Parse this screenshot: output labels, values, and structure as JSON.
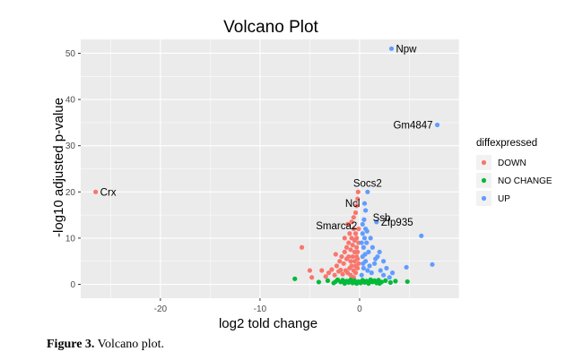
{
  "caption": {
    "label": "Figure 3.",
    "text": " Volcano plot."
  },
  "chart_data": {
    "type": "scatter",
    "title": "Volcano Plot",
    "xlabel": "log2 told change",
    "ylabel": "-log10 adjusted p-value",
    "xlim": [
      -28,
      10
    ],
    "ylim": [
      -3,
      53
    ],
    "x_ticks": [
      -20,
      -10,
      0
    ],
    "y_ticks": [
      0,
      10,
      20,
      30,
      40,
      50
    ],
    "grid": true,
    "legend": {
      "title": "diffexpressed",
      "placement": "right"
    },
    "series": [
      {
        "name": "DOWN",
        "color": "#F8766D",
        "points": [
          [
            -26.5,
            20
          ],
          [
            -5.8,
            8
          ],
          [
            -5,
            3
          ],
          [
            -4.8,
            1.5
          ],
          [
            -3.8,
            3
          ],
          [
            -3.4,
            1.7
          ],
          [
            -3.1,
            2.5
          ],
          [
            -2.8,
            3.2
          ],
          [
            -2.5,
            2
          ],
          [
            -2.3,
            4
          ],
          [
            -2.1,
            2.8
          ],
          [
            -2,
            5
          ],
          [
            -1.9,
            3.1
          ],
          [
            -1.8,
            6
          ],
          [
            -1.7,
            2.2
          ],
          [
            -1.6,
            4.5
          ],
          [
            -1.5,
            7
          ],
          [
            -1.4,
            3
          ],
          [
            -1.3,
            5.5
          ],
          [
            -1.3,
            8
          ],
          [
            -1.2,
            2.5
          ],
          [
            -1.1,
            6
          ],
          [
            -1.1,
            9
          ],
          [
            -1,
            3.5
          ],
          [
            -1,
            11
          ],
          [
            -0.9,
            5
          ],
          [
            -0.9,
            7.5
          ],
          [
            -0.8,
            4
          ],
          [
            -0.8,
            10
          ],
          [
            -0.7,
            6
          ],
          [
            -0.7,
            8.5
          ],
          [
            -0.6,
            3
          ],
          [
            -0.6,
            12
          ],
          [
            -0.5,
            5
          ],
          [
            -0.5,
            7
          ],
          [
            -0.5,
            9.5
          ],
          [
            -0.4,
            4
          ],
          [
            -0.4,
            11
          ],
          [
            -0.3,
            6
          ],
          [
            -0.3,
            8
          ],
          [
            -0.3,
            10
          ],
          [
            -0.2,
            3.5
          ],
          [
            -0.2,
            5.5
          ],
          [
            -0.2,
            7
          ],
          [
            -0.1,
            4.5
          ],
          [
            -0.1,
            9
          ],
          [
            -0.1,
            12
          ],
          [
            -0.8,
            13.5
          ],
          [
            -0.6,
            14.5
          ],
          [
            -0.4,
            15.5
          ],
          [
            -0.3,
            17
          ],
          [
            -0.2,
            18.5
          ],
          [
            -0.15,
            20
          ],
          [
            -1.2,
            13
          ],
          [
            -2.4,
            6.5
          ],
          [
            -1.5,
            10
          ],
          [
            -0.9,
            2
          ],
          [
            -0.6,
            1.5
          ],
          [
            -0.4,
            2.5
          ]
        ]
      },
      {
        "name": "NO CHANGE",
        "color": "#00BA38",
        "points": [
          [
            -6.5,
            1.2
          ],
          [
            -4.1,
            0.5
          ],
          [
            -3.2,
            0.8
          ],
          [
            -2.6,
            0.3
          ],
          [
            -2.2,
            1
          ],
          [
            -1.9,
            0.5
          ],
          [
            -1.7,
            0.9
          ],
          [
            -1.5,
            0.2
          ],
          [
            -1.3,
            0.7
          ],
          [
            -1.1,
            0.4
          ],
          [
            -0.9,
            1
          ],
          [
            -0.7,
            0.3
          ],
          [
            -0.5,
            0.8
          ],
          [
            -0.3,
            0.2
          ],
          [
            -0.1,
            0.6
          ],
          [
            0.1,
            0.3
          ],
          [
            0.3,
            0.9
          ],
          [
            0.5,
            0.4
          ],
          [
            0.7,
            0.7
          ],
          [
            0.9,
            0.2
          ],
          [
            1.1,
            1
          ],
          [
            1.3,
            0.5
          ],
          [
            1.5,
            0.8
          ],
          [
            1.7,
            0.3
          ],
          [
            1.9,
            0.9
          ],
          [
            2.2,
            0.5
          ],
          [
            2.6,
            0.8
          ],
          [
            3.1,
            0.4
          ],
          [
            3.6,
            0.7
          ],
          [
            4.8,
            0.6
          ],
          [
            -2.4,
            0.6
          ],
          [
            -0.8,
            0.5
          ],
          [
            0.6,
            0.6
          ],
          [
            2.0,
            0.2
          ]
        ]
      },
      {
        "name": "UP",
        "color": "#619CFF",
        "points": [
          [
            3.2,
            51
          ],
          [
            7.8,
            34.5
          ],
          [
            0.8,
            20
          ],
          [
            0.5,
            17.5
          ],
          [
            0.6,
            16
          ],
          [
            0.45,
            14
          ],
          [
            1.7,
            13.5
          ],
          [
            0.6,
            12
          ],
          [
            0.3,
            11
          ],
          [
            0.5,
            10
          ],
          [
            0.7,
            9
          ],
          [
            0.4,
            8
          ],
          [
            0.9,
            7
          ],
          [
            0.3,
            6
          ],
          [
            0.6,
            5
          ],
          [
            1,
            4
          ],
          [
            0.4,
            3.5
          ],
          [
            0.8,
            3
          ],
          [
            1.2,
            2.5
          ],
          [
            1.5,
            4.5
          ],
          [
            1.8,
            6
          ],
          [
            2.1,
            3
          ],
          [
            2.4,
            2
          ],
          [
            2.7,
            3.5
          ],
          [
            3,
            1.5
          ],
          [
            3.3,
            2.5
          ],
          [
            4.7,
            3.7
          ],
          [
            6.2,
            10.5
          ],
          [
            7.3,
            4.3
          ],
          [
            1.3,
            8
          ],
          [
            1.6,
            5.5
          ],
          [
            2,
            7
          ],
          [
            0.2,
            2
          ],
          [
            0.35,
            4.5
          ],
          [
            0.55,
            6.5
          ],
          [
            0.75,
            11.5
          ],
          [
            0.3,
            13
          ],
          [
            0.2,
            9
          ],
          [
            1.1,
            10
          ],
          [
            2.4,
            5
          ]
        ]
      }
    ],
    "annotations": [
      {
        "text": "Npw",
        "x": 3.2,
        "y": 51,
        "anchor": "right"
      },
      {
        "text": "Gm4847",
        "x": 7.8,
        "y": 34.5,
        "anchor": "left"
      },
      {
        "text": "Crx",
        "x": -26.5,
        "y": 20,
        "anchor": "right"
      },
      {
        "text": "Socs2",
        "x": 0.8,
        "y": 20,
        "anchor": "above"
      },
      {
        "text": "Ncl",
        "x": 0.5,
        "y": 17.5,
        "anchor": "left"
      },
      {
        "text": "Ssb",
        "x": 0.6,
        "y": 16,
        "anchor": "below-right"
      },
      {
        "text": "Smarca2",
        "x": -0.15,
        "y": 15,
        "anchor": "below-left"
      },
      {
        "text": "Zfp935",
        "x": 1.7,
        "y": 13.5,
        "anchor": "right"
      }
    ]
  }
}
